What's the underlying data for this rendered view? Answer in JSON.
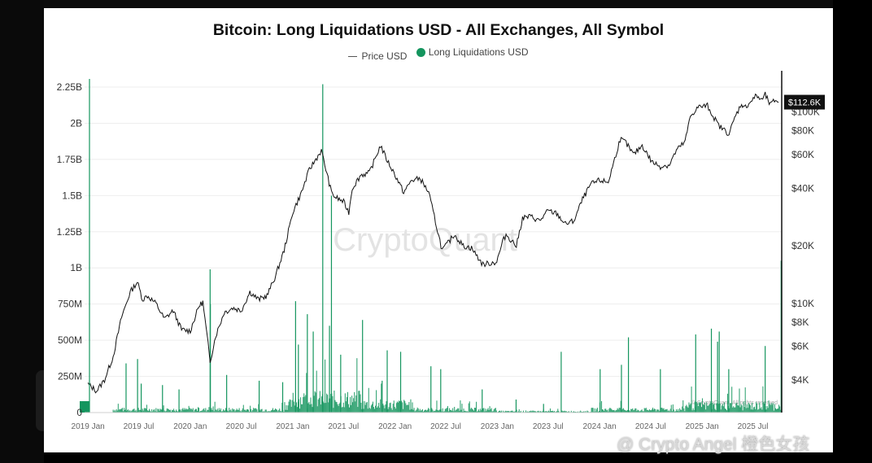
{
  "chart_data": {
    "type": "line",
    "title": "Bitcoin: Long Liquidations USD - All Exchanges, All Symbol",
    "series": [
      {
        "name": "Price USD",
        "kind": "line",
        "axis": "right",
        "color": "#111111",
        "points": [
          [
            "2019-01-01",
            3800
          ],
          [
            "2019-02-01",
            3500
          ],
          [
            "2019-03-01",
            4000
          ],
          [
            "2019-04-01",
            5300
          ],
          [
            "2019-05-01",
            8500
          ],
          [
            "2019-06-01",
            11500
          ],
          [
            "2019-06-26",
            13000
          ],
          [
            "2019-07-15",
            10500
          ],
          [
            "2019-08-01",
            11000
          ],
          [
            "2019-09-01",
            10000
          ],
          [
            "2019-10-01",
            8300
          ],
          [
            "2019-11-01",
            9200
          ],
          [
            "2019-12-01",
            7300
          ],
          [
            "2020-01-01",
            7200
          ],
          [
            "2020-02-01",
            9700
          ],
          [
            "2020-02-15",
            10200
          ],
          [
            "2020-03-12",
            5000
          ],
          [
            "2020-04-01",
            6800
          ],
          [
            "2020-05-01",
            9000
          ],
          [
            "2020-06-01",
            9500
          ],
          [
            "2020-07-01",
            9200
          ],
          [
            "2020-08-01",
            11500
          ],
          [
            "2020-09-01",
            10500
          ],
          [
            "2020-10-01",
            11000
          ],
          [
            "2020-11-01",
            14000
          ],
          [
            "2020-12-01",
            19000
          ],
          [
            "2021-01-01",
            30000
          ],
          [
            "2021-02-01",
            38000
          ],
          [
            "2021-03-01",
            50000
          ],
          [
            "2021-04-13",
            63000
          ],
          [
            "2021-05-19",
            38000
          ],
          [
            "2021-06-01",
            36000
          ],
          [
            "2021-07-01",
            34000
          ],
          [
            "2021-07-20",
            30000
          ],
          [
            "2021-08-01",
            40000
          ],
          [
            "2021-09-01",
            47000
          ],
          [
            "2021-10-01",
            48000
          ],
          [
            "2021-11-10",
            67000
          ],
          [
            "2021-12-01",
            57000
          ],
          [
            "2022-01-01",
            47000
          ],
          [
            "2022-02-01",
            38000
          ],
          [
            "2022-03-01",
            44000
          ],
          [
            "2022-04-01",
            45000
          ],
          [
            "2022-05-01",
            38000
          ],
          [
            "2022-06-18",
            19000
          ],
          [
            "2022-07-01",
            20000
          ],
          [
            "2022-08-01",
            23000
          ],
          [
            "2022-09-01",
            20000
          ],
          [
            "2022-10-01",
            19500
          ],
          [
            "2022-11-10",
            16000
          ],
          [
            "2022-12-30",
            16500
          ],
          [
            "2023-01-20",
            21000
          ],
          [
            "2023-02-01",
            23000
          ],
          [
            "2023-03-10",
            20000
          ],
          [
            "2023-04-01",
            28000
          ],
          [
            "2023-05-01",
            28500
          ],
          [
            "2023-06-01",
            27000
          ],
          [
            "2023-07-01",
            30500
          ],
          [
            "2023-08-01",
            29500
          ],
          [
            "2023-09-01",
            26000
          ],
          [
            "2023-10-01",
            27000
          ],
          [
            "2023-11-01",
            35000
          ],
          [
            "2023-12-01",
            42000
          ],
          [
            "2024-01-01",
            44000
          ],
          [
            "2024-02-01",
            43000
          ],
          [
            "2024-03-14",
            72000
          ],
          [
            "2024-04-01",
            70000
          ],
          [
            "2024-05-01",
            60000
          ],
          [
            "2024-06-01",
            67000
          ],
          [
            "2024-07-05",
            55000
          ],
          [
            "2024-08-05",
            52000
          ],
          [
            "2024-09-06",
            53000
          ],
          [
            "2024-10-01",
            63000
          ],
          [
            "2024-11-01",
            70000
          ],
          [
            "2024-11-20",
            95000
          ],
          [
            "2024-12-17",
            106000
          ],
          [
            "2025-01-20",
            108000
          ],
          [
            "2025-02-01",
            100000
          ],
          [
            "2025-03-01",
            85000
          ],
          [
            "2025-04-07",
            77000
          ],
          [
            "2025-05-01",
            96000
          ],
          [
            "2025-05-22",
            111000
          ],
          [
            "2025-06-01",
            105000
          ],
          [
            "2025-07-14",
            122000
          ],
          [
            "2025-08-01",
            115000
          ],
          [
            "2025-08-14",
            123000
          ],
          [
            "2025-09-01",
            109000
          ],
          [
            "2025-09-20",
            116000
          ],
          [
            "2025-10-01",
            112600
          ]
        ]
      },
      {
        "name": "Long Liquidations USD",
        "kind": "bar",
        "axis": "left",
        "color": "#14955e",
        "spikes": [
          [
            "2019-05-17",
            340000000
          ],
          [
            "2019-06-27",
            370000000
          ],
          [
            "2019-07-10",
            200000000
          ],
          [
            "2019-09-24",
            190000000
          ],
          [
            "2019-11-22",
            160000000
          ],
          [
            "2020-03-12",
            990000000
          ],
          [
            "2020-03-13",
            750000000
          ],
          [
            "2020-05-10",
            260000000
          ],
          [
            "2020-09-03",
            220000000
          ],
          [
            "2020-11-26",
            210000000
          ],
          [
            "2021-01-11",
            770000000
          ],
          [
            "2021-01-21",
            470000000
          ],
          [
            "2021-02-22",
            680000000
          ],
          [
            "2021-03-15",
            560000000
          ],
          [
            "2021-04-18",
            2270000000
          ],
          [
            "2021-05-12",
            600000000
          ],
          [
            "2021-05-19",
            1500000000
          ],
          [
            "2021-06-21",
            400000000
          ],
          [
            "2021-09-07",
            640000000
          ],
          [
            "2021-11-16",
            220000000
          ],
          [
            "2021-12-04",
            430000000
          ],
          [
            "2022-01-21",
            420000000
          ],
          [
            "2022-05-09",
            320000000
          ],
          [
            "2022-06-13",
            300000000
          ],
          [
            "2022-11-08",
            160000000
          ],
          [
            "2023-03-09",
            90000000
          ],
          [
            "2023-06-15",
            60000000
          ],
          [
            "2023-08-17",
            420000000
          ],
          [
            "2024-01-03",
            300000000
          ],
          [
            "2024-03-19",
            330000000
          ],
          [
            "2024-04-13",
            520000000
          ],
          [
            "2024-08-05",
            300000000
          ],
          [
            "2024-12-09",
            540000000
          ],
          [
            "2025-02-03",
            580000000
          ],
          [
            "2025-02-25",
            490000000
          ],
          [
            "2025-03-03",
            560000000
          ],
          [
            "2025-04-06",
            300000000
          ],
          [
            "2025-08-14",
            460000000
          ],
          [
            "2025-10-10",
            1050000000
          ]
        ]
      }
    ],
    "x_tick_labels": [
      "2019 Jan",
      "2019 Jul",
      "2020 Jan",
      "2020 Jul",
      "2021 Jan",
      "2021 Jul",
      "2022 Jan",
      "2022 Jul",
      "2023 Jan",
      "2023 Jul",
      "2024 Jan",
      "2024 Jul",
      "2025 Jan",
      "2025 Jul"
    ],
    "xlim": [
      "2018-12-20",
      "2025-10-12"
    ],
    "y_left": {
      "ticks": [
        0,
        250000000,
        500000000,
        750000000,
        1000000000,
        1250000000,
        1500000000,
        1750000000,
        2000000000,
        2250000000
      ],
      "tick_labels": [
        "0",
        "250M",
        "500M",
        "750M",
        "1B",
        "1.25B",
        "1.5B",
        "1.75B",
        "2B",
        "2.25B"
      ],
      "ylim": [
        0,
        2250000000
      ]
    },
    "y_right": {
      "scale": "log",
      "ticks": [
        4000,
        6000,
        8000,
        10000,
        20000,
        40000,
        60000,
        80000,
        100000
      ],
      "tick_labels": [
        "$4K",
        "$6K",
        "$8K",
        "$10K",
        "$20K",
        "$40K",
        "$60K",
        "$80K",
        "$100K"
      ],
      "ylim": [
        2700,
        135000
      ]
    },
    "last_price_label": "$112.6K",
    "grid": true,
    "legend_position": "top-center",
    "watermark": "CryptoQuant",
    "copyright": "© CryptoQuant. All rights reserved"
  },
  "legend_items": [
    {
      "label": "Price USD",
      "icon": "line"
    },
    {
      "label": "Long Liquidations USD",
      "icon": "dot"
    }
  ],
  "overlay_caption": "@ Crypto Angel 橙色女孩"
}
